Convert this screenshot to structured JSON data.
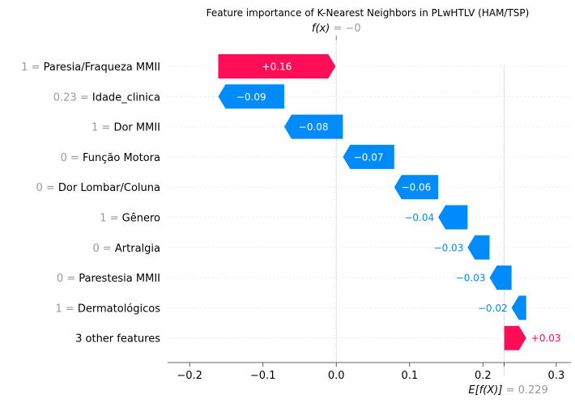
{
  "chart_data": {
    "type": "waterfall",
    "title": "Feature importance of K-Nearest Neighbors in PLwHTLV (HAM/TSP)",
    "fx_label": "f(x)",
    "fx_value_text": "−0",
    "fx": 0.0,
    "ex_label": "E[f(X)]",
    "ex_value_text": "0.229",
    "base_value": 0.229,
    "xlim": [
      -0.23,
      0.32
    ],
    "xticks": [
      -0.2,
      -0.1,
      0.0,
      0.1,
      0.2,
      0.3
    ],
    "xtick_labels": [
      "−0.2",
      "−0.1",
      "0.0",
      "0.1",
      "0.2",
      "0.3"
    ],
    "features": [
      {
        "value": "1",
        "name": "Paresia/Fraqueza MMII",
        "shap": 0.16,
        "label": "+0.16"
      },
      {
        "value": "0.23",
        "name": "Idade_clinica",
        "shap": -0.09,
        "label": "−0.09"
      },
      {
        "value": "1",
        "name": "Dor MMII",
        "shap": -0.08,
        "label": "−0.08"
      },
      {
        "value": "0",
        "name": "Função Motora",
        "shap": -0.07,
        "label": "−0.07"
      },
      {
        "value": "0",
        "name": "Dor Lombar/Coluna",
        "shap": -0.06,
        "label": "−0.06"
      },
      {
        "value": "1",
        "name": "Gênero",
        "shap": -0.04,
        "label": "−0.04"
      },
      {
        "value": "0",
        "name": "Artralgia",
        "shap": -0.03,
        "label": "−0.03"
      },
      {
        "value": "0",
        "name": "Parestesia MMII",
        "shap": -0.03,
        "label": "−0.03"
      },
      {
        "value": "1",
        "name": "Dermatológicos",
        "shap": -0.02,
        "label": "−0.02"
      },
      {
        "value": "",
        "name": "3 other features",
        "shap": 0.03,
        "label": "+0.03"
      }
    ],
    "colors": {
      "positive": "#ff0d57",
      "negative": "#008bfb",
      "tick_grey": "#999999"
    }
  }
}
